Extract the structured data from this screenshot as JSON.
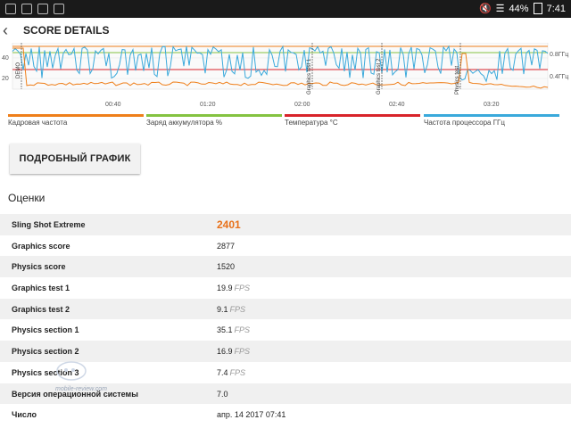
{
  "status": {
    "battery": "44%",
    "time": "7:41"
  },
  "appbar": {
    "title": "SCORE DETAILS"
  },
  "chart": {
    "yticks_left": [
      "40",
      "20"
    ],
    "yticks_right": [
      "0.8ГГц",
      "0.4ГГц"
    ],
    "xticks": [
      "00:40",
      "01:20",
      "02:00",
      "02:40",
      "03:20"
    ],
    "markers": [
      "DEMO",
      "Graphics test 1",
      "Graphics test 2",
      "Physics test"
    ]
  },
  "legend": [
    {
      "label": "Кадровая частота",
      "color": "#ef7f1a"
    },
    {
      "label": "Заряд аккумулятора %",
      "color": "#84c341"
    },
    {
      "label": "Температура °C",
      "color": "#d8232a"
    },
    {
      "label": "Частота процессора ГГц",
      "color": "#3aa9db"
    }
  ],
  "detail_button": "ПОДРОБНЫЙ ГРАФИК",
  "section_title": "Оценки",
  "rows": [
    {
      "name": "Sling Shot Extreme",
      "value": "2401",
      "unit": ""
    },
    {
      "name": "Graphics score",
      "value": "2877",
      "unit": ""
    },
    {
      "name": "Physics score",
      "value": "1520",
      "unit": ""
    },
    {
      "name": "Graphics test 1",
      "value": "19.9",
      "unit": "FPS"
    },
    {
      "name": "Graphics test 2",
      "value": "9.1",
      "unit": "FPS"
    },
    {
      "name": "Physics section 1",
      "value": "35.1",
      "unit": "FPS"
    },
    {
      "name": "Physics section 2",
      "value": "16.9",
      "unit": "FPS"
    },
    {
      "name": "Physics section 3",
      "value": "7.4",
      "unit": "FPS"
    },
    {
      "name": "Версия операционной системы",
      "value": "7.0",
      "unit": ""
    },
    {
      "name": "Число",
      "value": "апр. 14 2017 07:41",
      "unit": ""
    }
  ],
  "watermark": "mobile-review.com"
}
